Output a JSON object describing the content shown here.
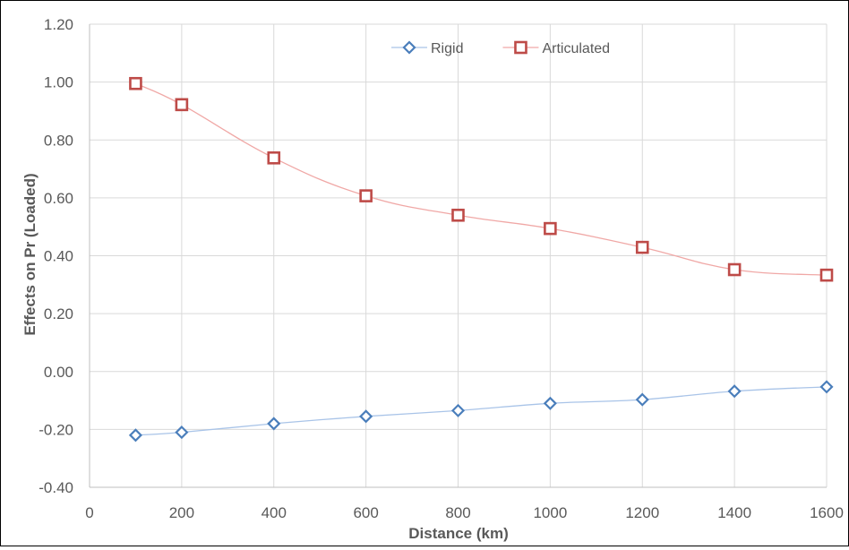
{
  "chart_data": {
    "type": "line",
    "x": [
      100,
      200,
      400,
      600,
      800,
      1000,
      1200,
      1400,
      1600
    ],
    "series": [
      {
        "name": "Rigid",
        "values": [
          -0.22,
          -0.21,
          -0.18,
          -0.155,
          -0.135,
          -0.11,
          -0.097,
          -0.068,
          -0.053
        ],
        "color": "#4a7ebb",
        "line_color": "#a9c4e8",
        "marker": "diamond"
      },
      {
        "name": "Articulated",
        "values": [
          0.995,
          0.922,
          0.738,
          0.607,
          0.54,
          0.494,
          0.429,
          0.352,
          0.333
        ],
        "color": "#be4b48",
        "line_color": "#f0a8a6",
        "marker": "square"
      }
    ],
    "xlabel": "Distance (km)",
    "ylabel": "Effects on Pr (Loaded)",
    "xlim": [
      0,
      1600
    ],
    "ylim": [
      -0.4,
      1.2
    ],
    "xticks": [
      0,
      200,
      400,
      600,
      800,
      1000,
      1200,
      1400,
      1600
    ],
    "yticks": [
      -0.4,
      -0.2,
      0,
      0.2,
      0.4,
      0.6,
      0.8,
      1.0,
      1.2
    ],
    "xtick_labels": [
      "0",
      "200",
      "400",
      "600",
      "800",
      "1000",
      "1200",
      "1400",
      "1600"
    ],
    "ytick_labels": [
      "-0.40",
      "-0.20",
      "0.00",
      "0.20",
      "0.40",
      "0.60",
      "0.80",
      "1.00",
      "1.20"
    ],
    "grid": true,
    "smooth": true,
    "legend_position": "top-center",
    "grid_color": "#d9d9d9",
    "axis_color": "#bfbfbf"
  }
}
